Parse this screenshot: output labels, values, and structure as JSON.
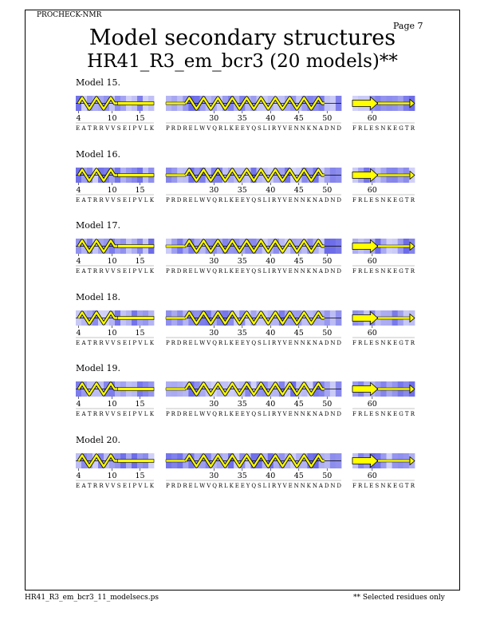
{
  "header": {
    "program": "PROCHECK-NMR",
    "page": "Page  7"
  },
  "title": "Model secondary structures",
  "subtitle": "HR41_R3_em_bcr3 (20 models)**",
  "footer": {
    "filename": "HR41_R3_em_bcr3_11_modelsecs.ps",
    "note": "** Selected residues only"
  },
  "segments": [
    {
      "sequence": "EATRRVVSEIPVLK",
      "start": 4,
      "end": 17,
      "ticks": [
        4,
        10,
        15
      ]
    },
    {
      "sequence": "PRDRELWVQRLKEEYQSLIRYVENNKNADND",
      "start": 22,
      "end": 52,
      "ticks": [
        30,
        35,
        40,
        45,
        50
      ]
    },
    {
      "sequence": "FRLESNKEGTR",
      "start": 57,
      "end": 67,
      "ticks": [
        60
      ]
    }
  ],
  "models": [
    {
      "label": "Model 15."
    },
    {
      "label": "Model 16."
    },
    {
      "label": "Model 17."
    },
    {
      "label": "Model 18."
    },
    {
      "label": "Model 19."
    },
    {
      "label": "Model 20."
    }
  ],
  "colors": {
    "shade_dark": "#6a6ae8",
    "shade_light": "#e6e6fb",
    "helix": "#ffff00",
    "outline": "#000000"
  }
}
